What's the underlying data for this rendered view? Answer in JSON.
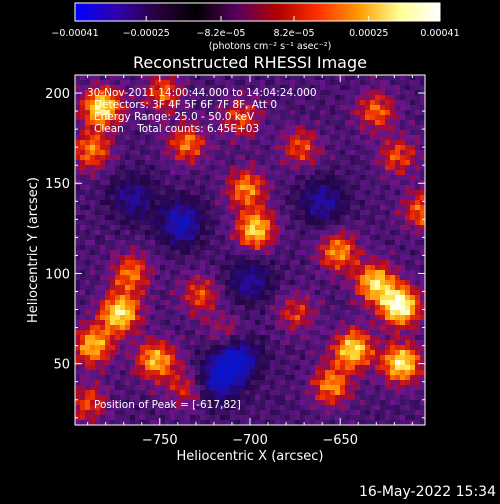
{
  "chart_data": {
    "type": "heatmap",
    "title": "Reconstructed RHESSI Image",
    "xlabel": "Heliocentric X (arcsec)",
    "ylabel": "Heliocentric Y (arcsec)",
    "xlim": [
      -797,
      -603
    ],
    "ylim": [
      16,
      210
    ],
    "x_ticks": [
      -750,
      -700,
      -650
    ],
    "x_tick_labels": [
      "−750",
      "−700",
      "−650"
    ],
    "y_ticks": [
      50,
      100,
      150,
      200
    ],
    "y_tick_labels": [
      "50",
      "100",
      "150",
      "200"
    ],
    "grid": false,
    "colorbar": {
      "range": [
        -0.00041,
        0.00041
      ],
      "tick_values": [
        -0.00041,
        -0.00025,
        -8.2e-05,
        8.2e-05,
        0.00025,
        0.00041
      ],
      "tick_labels": [
        "−0.00041",
        "−0.00025",
        "−8.2e−05",
        "8.2e−05",
        "0.00025",
        "0.00041"
      ],
      "unit_label": "(photons cm⁻² s⁻¹ asec⁻²)",
      "colors": [
        "#0000ff",
        "#3000b0",
        "#2a0040",
        "#000000",
        "#5a0060",
        "#b00000",
        "#ff3000",
        "#ff9a00",
        "#ffff90",
        "#ffffff"
      ]
    },
    "annotations": {
      "time_range": "30-Nov-2011 14:00:44.000 to 14:04:24.000",
      "detectors": "Detectors: 3F 4F 5F 6F 7F 8F, Att 0",
      "energy_range": "Energy Range: 25.0 - 50.0 keV",
      "method_counts": "Clean    Total counts: 6.45E+03",
      "peak_position": "Position of Peak = [-617,82]"
    },
    "bright_regions": [
      {
        "x": -782,
        "y": 192,
        "level": 0.85
      },
      {
        "x": -748,
        "y": 200,
        "level": 0.5
      },
      {
        "x": -735,
        "y": 172,
        "level": 0.55
      },
      {
        "x": -788,
        "y": 168,
        "level": 0.55
      },
      {
        "x": -702,
        "y": 147,
        "level": 0.6
      },
      {
        "x": -697,
        "y": 124,
        "level": 0.75
      },
      {
        "x": -672,
        "y": 170,
        "level": 0.45
      },
      {
        "x": -705,
        "y": 186,
        "level": 0.45
      },
      {
        "x": -630,
        "y": 190,
        "level": 0.5
      },
      {
        "x": -618,
        "y": 165,
        "level": 0.45
      },
      {
        "x": -651,
        "y": 112,
        "level": 0.6
      },
      {
        "x": -617,
        "y": 82,
        "level": 1.0
      },
      {
        "x": -631,
        "y": 95,
        "level": 0.75
      },
      {
        "x": -643,
        "y": 58,
        "level": 0.8
      },
      {
        "x": -616,
        "y": 50,
        "level": 0.85
      },
      {
        "x": -655,
        "y": 38,
        "level": 0.6
      },
      {
        "x": -772,
        "y": 78,
        "level": 0.85
      },
      {
        "x": -787,
        "y": 60,
        "level": 0.7
      },
      {
        "x": -752,
        "y": 52,
        "level": 0.7
      },
      {
        "x": -766,
        "y": 100,
        "level": 0.55
      },
      {
        "x": -728,
        "y": 88,
        "level": 0.45
      },
      {
        "x": -735,
        "y": 36,
        "level": 0.4
      },
      {
        "x": -790,
        "y": 28,
        "level": 0.45
      },
      {
        "x": -674,
        "y": 78,
        "level": 0.4
      },
      {
        "x": -713,
        "y": 66,
        "level": 0.35
      },
      {
        "x": -604,
        "y": 135,
        "level": 0.55
      }
    ],
    "dark_regions": [
      {
        "x": -738,
        "y": 128,
        "level": 0.7
      },
      {
        "x": -708,
        "y": 53,
        "level": 0.9
      },
      {
        "x": -718,
        "y": 40,
        "level": 0.65
      },
      {
        "x": -660,
        "y": 140,
        "level": 0.55
      },
      {
        "x": -765,
        "y": 142,
        "level": 0.5
      },
      {
        "x": -700,
        "y": 96,
        "level": 0.5
      }
    ]
  },
  "footer": {
    "timestamp": "16-May-2022 15:34"
  }
}
